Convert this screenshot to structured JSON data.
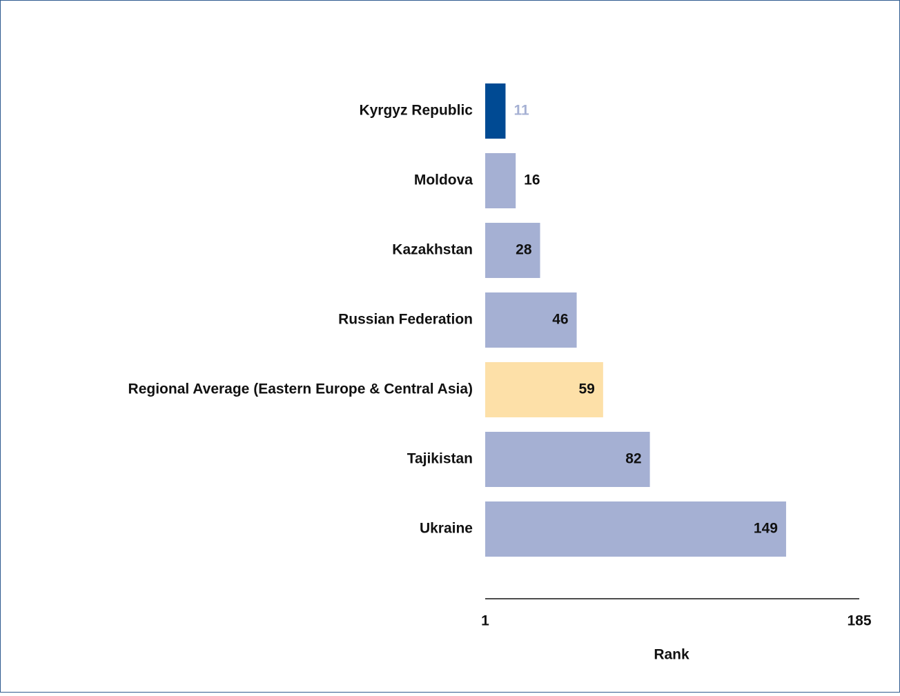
{
  "chart_data": {
    "type": "hbar",
    "categories": [
      "Kyrgyz Republic",
      "Moldova",
      "Kazakhstan",
      "Russian Federation",
      "Regional Average (Eastern Europe & Central Asia)",
      "Tajikistan",
      "Ukraine"
    ],
    "values": [
      11,
      16,
      28,
      46,
      59,
      82,
      149
    ],
    "colors": [
      "#004a93",
      "#a5b0d3",
      "#a5b0d3",
      "#a5b0d3",
      "#fde0a8",
      "#a5b0d3",
      "#a5b0d3"
    ],
    "label_colors": [
      "#a5b0d3",
      "#111111",
      "#111111",
      "#111111",
      "#111111",
      "#111111",
      "#111111"
    ],
    "xlim": [
      1,
      185
    ],
    "xticks": [
      1,
      185
    ],
    "xlabel": "Rank"
  }
}
